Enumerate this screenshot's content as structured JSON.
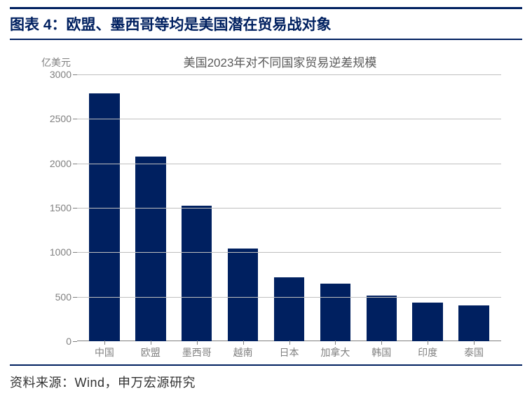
{
  "header": {
    "title": "图表 4：欧盟、墨西哥等均是美国潜在贸易战对象"
  },
  "chart": {
    "type": "bar",
    "title": "美国2023年对不同国家贸易逆差规模",
    "y_unit": "亿美元",
    "categories": [
      "中国",
      "欧盟",
      "墨西哥",
      "越南",
      "日本",
      "加拿大",
      "韩国",
      "印度",
      "泰国"
    ],
    "values": [
      2790,
      2080,
      1520,
      1045,
      715,
      645,
      510,
      435,
      405
    ],
    "bar_color": "#002060",
    "ylim": [
      0,
      3000
    ],
    "ytick_step": 500,
    "grid_color": "#bfbfbf",
    "axis_label_color": "#808080",
    "background_color": "#ffffff",
    "title_fontsize": 17,
    "label_fontsize": 14,
    "bar_width_ratio": 0.66
  },
  "source": {
    "label": "资料来源：",
    "text": "Wind，申万宏源研究"
  },
  "colors": {
    "accent": "#002060",
    "text_muted": "#808080",
    "text_body": "#333333"
  }
}
